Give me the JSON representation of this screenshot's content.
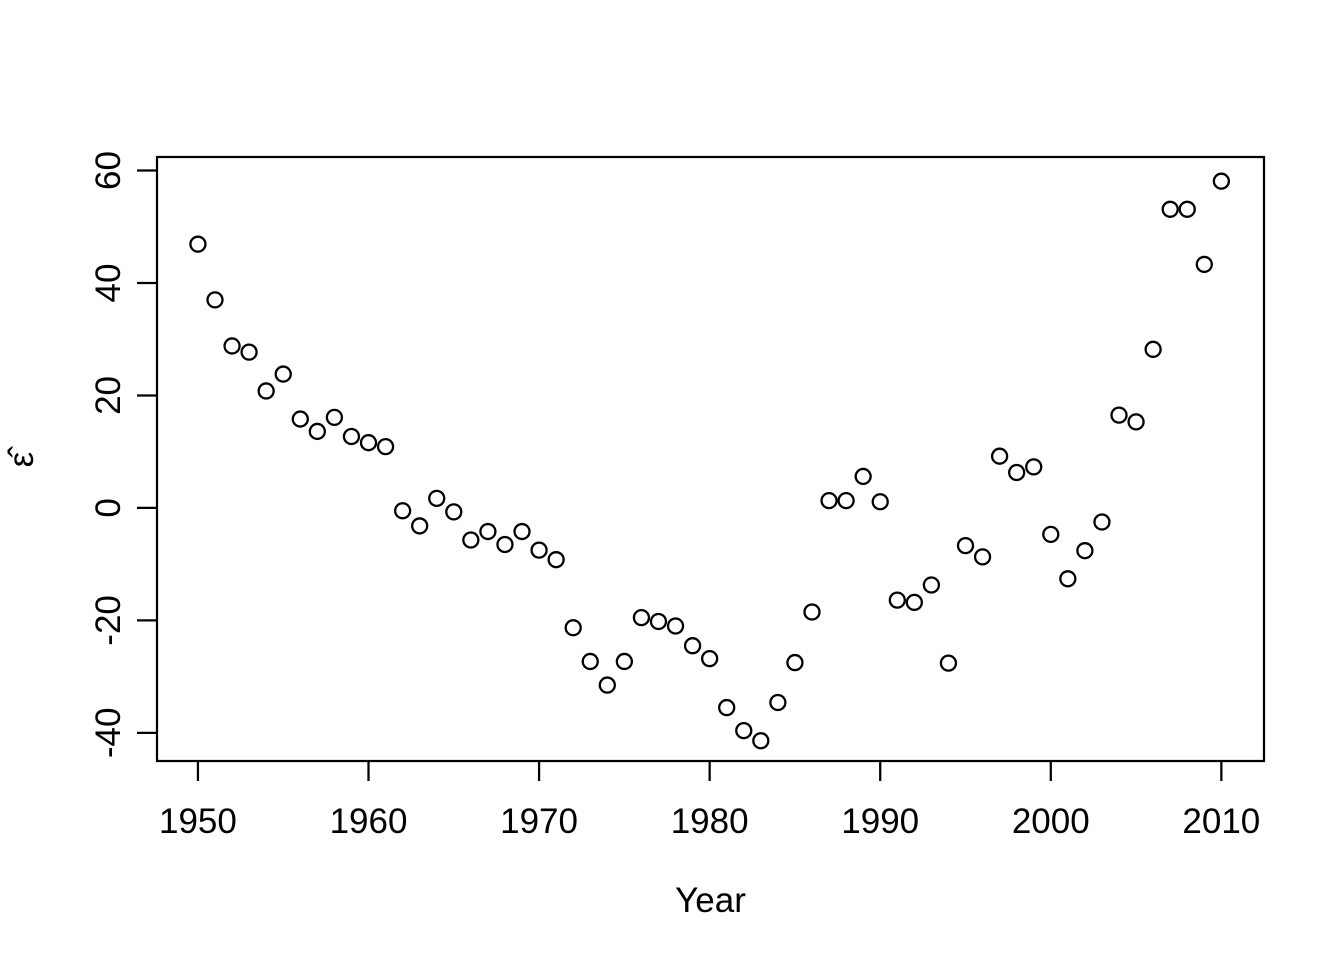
{
  "chart_data": {
    "type": "scatter",
    "title": "",
    "xlabel": "Year",
    "ylabel": "ε̂",
    "marker": "open-circle",
    "grid": false,
    "legend": "none",
    "colors": {
      "points": "#000000",
      "axis": "#000000",
      "background": "#ffffff"
    },
    "xlim": [
      1947.6,
      2012.5
    ],
    "ylim": [
      -45.0,
      62.4
    ],
    "xticks": [
      1950,
      1960,
      1970,
      1980,
      1990,
      2000,
      2010
    ],
    "yticks": [
      -40,
      -20,
      0,
      20,
      40,
      60
    ],
    "x": [
      1950,
      1951,
      1952,
      1953,
      1954,
      1955,
      1956,
      1957,
      1958,
      1959,
      1960,
      1961,
      1962,
      1963,
      1964,
      1965,
      1966,
      1967,
      1968,
      1969,
      1970,
      1971,
      1972,
      1973,
      1974,
      1975,
      1976,
      1977,
      1978,
      1979,
      1980,
      1981,
      1982,
      1983,
      1984,
      1985,
      1986,
      1987,
      1988,
      1989,
      1990,
      1991,
      1992,
      1993,
      1994,
      1995,
      1996,
      1997,
      1998,
      1999,
      2000,
      2001,
      2002,
      2003,
      2004,
      2005,
      2006,
      2007,
      2008,
      2009,
      2010
    ],
    "y": [
      46.9,
      37.0,
      28.8,
      27.7,
      20.8,
      23.8,
      15.8,
      13.6,
      16.1,
      12.7,
      11.6,
      10.9,
      -0.5,
      -3.2,
      1.7,
      -0.7,
      -5.7,
      -4.2,
      -6.5,
      -4.2,
      -7.5,
      -9.2,
      -21.3,
      -27.3,
      -31.5,
      -27.3,
      -19.5,
      -20.2,
      -21.0,
      -24.5,
      -26.8,
      -35.5,
      -39.6,
      -41.4,
      -34.6,
      -27.5,
      -18.5,
      1.3,
      1.3,
      5.6,
      1.1,
      -16.4,
      -16.8,
      -13.7,
      -27.6,
      -6.7,
      -8.7,
      9.2,
      6.3,
      7.3,
      -4.7,
      -12.6,
      -7.6,
      -2.5,
      16.5,
      15.3,
      28.2,
      53.1,
      53.1,
      43.3,
      58.1
    ]
  }
}
